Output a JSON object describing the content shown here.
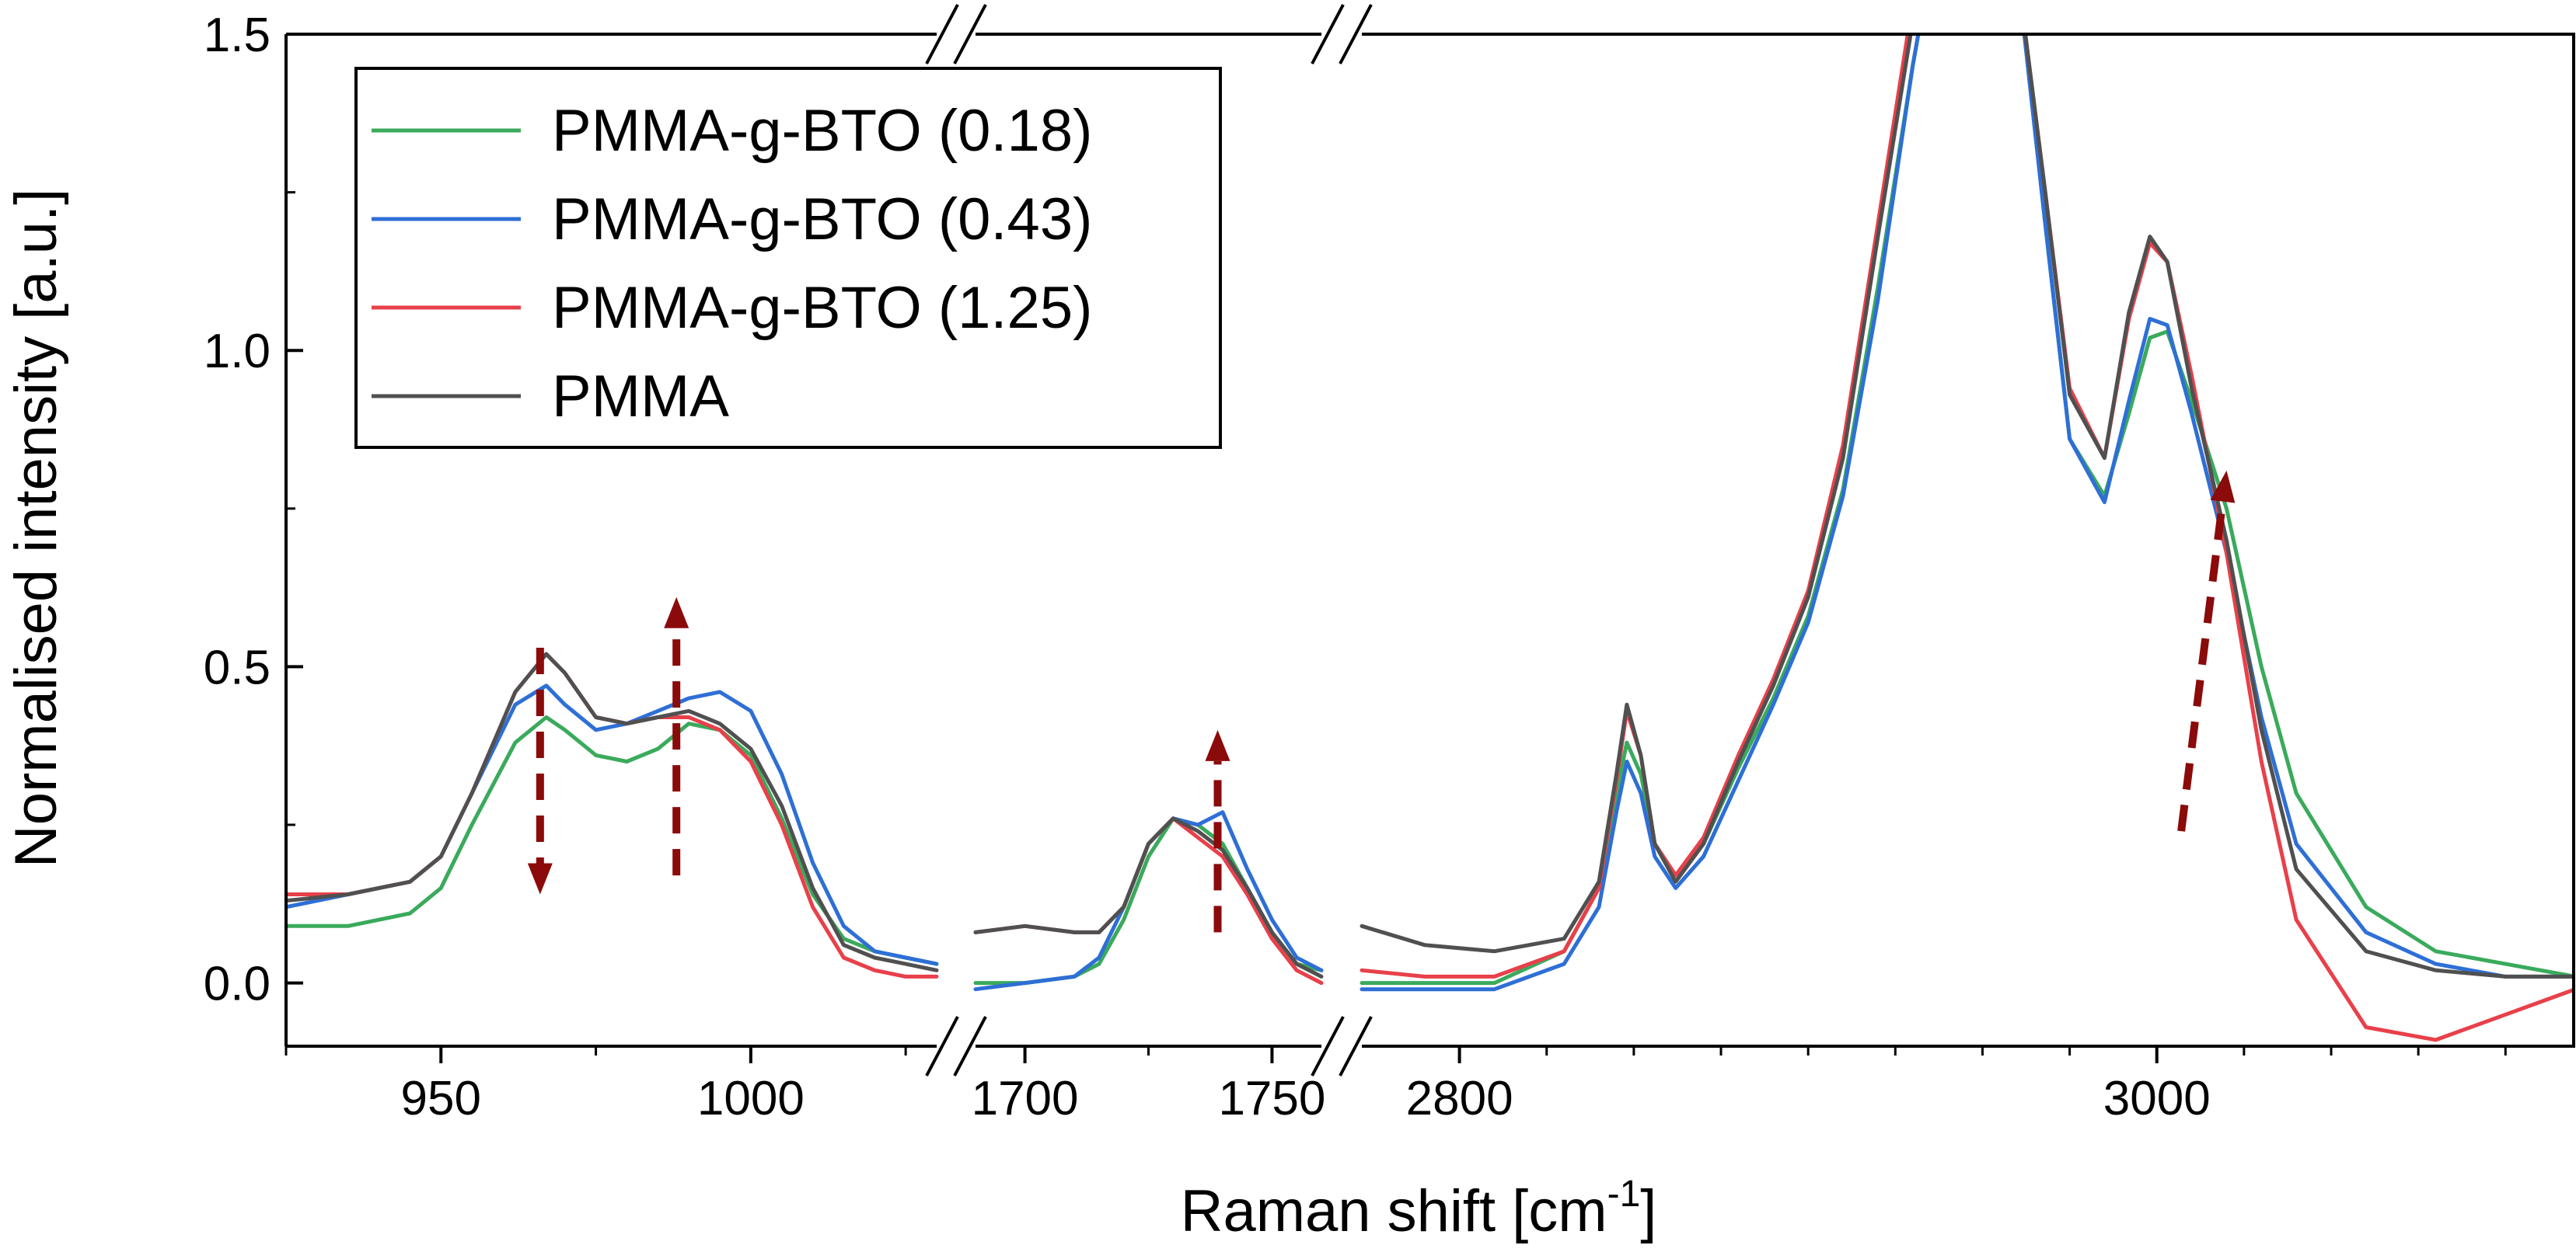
{
  "chart_data": {
    "type": "line",
    "xlabel": "Raman shift [cm",
    "xlabel_superscript": "-1",
    "xlabel_suffix": "]",
    "ylabel": "Normalised intensity [a.u.]",
    "ylim": [
      -0.1,
      1.5
    ],
    "y_ticks": [
      0.0,
      0.5,
      1.0,
      1.5
    ],
    "y_tick_labels": [
      "0.0",
      "0.5",
      "1.0",
      "1.5"
    ],
    "legend_position": "top-left",
    "axis_breaks": [
      "1030-1690",
      "1760-2772"
    ],
    "panels": [
      {
        "x_range": [
          925,
          1030
        ],
        "ticks": [
          950,
          1000
        ],
        "tick_labels": [
          "950",
          "1000"
        ],
        "minor_ticks": [
          925,
          975,
          1025
        ]
      },
      {
        "x_range": [
          1690,
          1760
        ],
        "ticks": [
          1700,
          1750
        ],
        "tick_labels": [
          "1700",
          "1750"
        ],
        "minor_ticks": [
          1725
        ]
      },
      {
        "x_range": [
          2772,
          3120
        ],
        "ticks": [
          2800,
          3000
        ],
        "tick_labels": [
          "2800",
          "3000"
        ],
        "minor_ticks": [
          2825,
          2850,
          2875,
          2900,
          2925,
          2950,
          2975,
          3025,
          3050,
          3075,
          3100
        ]
      }
    ],
    "series": [
      {
        "name": "PMMA-g-BTO (0.18)",
        "color": "#3aaa5c",
        "panels": [
          {
            "x": [
              925,
              935,
              945,
              950,
              955,
              962,
              967,
              970,
              975,
              980,
              985,
              990,
              995,
              1000,
              1005,
              1010,
              1015,
              1020,
              1025,
              1030
            ],
            "y": [
              0.09,
              0.09,
              0.11,
              0.15,
              0.25,
              0.38,
              0.42,
              0.4,
              0.36,
              0.35,
              0.37,
              0.41,
              0.4,
              0.36,
              0.26,
              0.14,
              0.07,
              0.05,
              0.04,
              0.03
            ]
          },
          {
            "x": [
              1690,
              1700,
              1710,
              1715,
              1720,
              1725,
              1730,
              1735,
              1740,
              1745,
              1750,
              1755,
              1760
            ],
            "y": [
              0.0,
              0.0,
              0.01,
              0.03,
              0.1,
              0.2,
              0.26,
              0.25,
              0.22,
              0.15,
              0.08,
              0.03,
              0.02
            ]
          },
          {
            "x": [
              2772,
              2790,
              2810,
              2830,
              2840,
              2845,
              2848,
              2852,
              2856,
              2862,
              2870,
              2880,
              2890,
              2900,
              2910,
              2920,
              2930,
              2938,
              2945,
              2960,
              2968,
              2975,
              2985,
              2992,
              2998,
              3003,
              3010,
              3020,
              3030,
              3040,
              3060,
              3080,
              3100,
              3120
            ],
            "y": [
              0.0,
              0.0,
              0.0,
              0.05,
              0.15,
              0.3,
              0.38,
              0.33,
              0.22,
              0.17,
              0.22,
              0.34,
              0.45,
              0.58,
              0.78,
              1.1,
              1.45,
              1.7,
              1.7,
              1.6,
              1.2,
              0.86,
              0.77,
              0.9,
              1.02,
              1.03,
              0.92,
              0.75,
              0.5,
              0.3,
              0.12,
              0.05,
              0.03,
              0.01
            ]
          }
        ]
      },
      {
        "name": "PMMA-g-BTO (0.43)",
        "color": "#2e6fd6",
        "panels": [
          {
            "x": [
              925,
              935,
              945,
              950,
              955,
              962,
              967,
              970,
              975,
              980,
              985,
              990,
              995,
              1000,
              1005,
              1010,
              1015,
              1020,
              1025,
              1030
            ],
            "y": [
              0.12,
              0.14,
              0.16,
              0.2,
              0.3,
              0.44,
              0.47,
              0.44,
              0.4,
              0.41,
              0.43,
              0.45,
              0.46,
              0.43,
              0.33,
              0.19,
              0.09,
              0.05,
              0.04,
              0.03
            ]
          },
          {
            "x": [
              1690,
              1700,
              1710,
              1715,
              1720,
              1725,
              1730,
              1735,
              1740,
              1745,
              1750,
              1755,
              1760
            ],
            "y": [
              -0.01,
              0.0,
              0.01,
              0.04,
              0.12,
              0.22,
              0.26,
              0.25,
              0.27,
              0.18,
              0.1,
              0.04,
              0.02
            ]
          },
          {
            "x": [
              2772,
              2790,
              2810,
              2830,
              2840,
              2845,
              2848,
              2852,
              2856,
              2862,
              2870,
              2880,
              2890,
              2900,
              2910,
              2920,
              2930,
              2938,
              2945,
              2960,
              2968,
              2975,
              2985,
              2992,
              2998,
              3003,
              3010,
              3020,
              3030,
              3040,
              3060,
              3080,
              3100,
              3120
            ],
            "y": [
              -0.01,
              -0.01,
              -0.01,
              0.03,
              0.12,
              0.27,
              0.35,
              0.3,
              0.2,
              0.15,
              0.2,
              0.32,
              0.44,
              0.57,
              0.77,
              1.08,
              1.45,
              1.7,
              1.7,
              1.6,
              1.2,
              0.86,
              0.76,
              0.92,
              1.05,
              1.04,
              0.9,
              0.68,
              0.42,
              0.22,
              0.08,
              0.03,
              0.01,
              0.01
            ]
          }
        ]
      },
      {
        "name": "PMMA-g-BTO (1.25)",
        "color": "#e8404a",
        "panels": [
          {
            "x": [
              925,
              935,
              945,
              950,
              955,
              962,
              967,
              970,
              975,
              980,
              985,
              990,
              995,
              1000,
              1005,
              1010,
              1015,
              1020,
              1025,
              1030
            ],
            "y": [
              0.14,
              0.14,
              0.16,
              0.2,
              0.3,
              0.46,
              0.52,
              0.49,
              0.42,
              0.41,
              0.42,
              0.42,
              0.4,
              0.35,
              0.25,
              0.12,
              0.04,
              0.02,
              0.01,
              0.01
            ]
          },
          {
            "x": [
              1690,
              1700,
              1710,
              1715,
              1720,
              1725,
              1730,
              1735,
              1740,
              1745,
              1750,
              1755,
              1760
            ],
            "y": [
              0.08,
              0.09,
              0.08,
              0.08,
              0.12,
              0.22,
              0.26,
              0.23,
              0.2,
              0.14,
              0.07,
              0.02,
              0.0
            ]
          },
          {
            "x": [
              2772,
              2790,
              2810,
              2830,
              2840,
              2845,
              2848,
              2852,
              2856,
              2862,
              2870,
              2880,
              2890,
              2900,
              2910,
              2920,
              2930,
              2938,
              2945,
              2960,
              2968,
              2975,
              2985,
              2992,
              2998,
              3003,
              3010,
              3020,
              3030,
              3040,
              3060,
              3080,
              3100,
              3120
            ],
            "y": [
              0.02,
              0.01,
              0.01,
              0.05,
              0.15,
              0.32,
              0.43,
              0.36,
              0.22,
              0.17,
              0.23,
              0.36,
              0.48,
              0.62,
              0.85,
              1.2,
              1.55,
              1.7,
              1.7,
              1.6,
              1.25,
              0.94,
              0.83,
              1.05,
              1.17,
              1.14,
              0.96,
              0.68,
              0.35,
              0.1,
              -0.07,
              -0.09,
              -0.05,
              -0.01
            ]
          }
        ]
      },
      {
        "name": "PMMA",
        "color": "#505050",
        "panels": [
          {
            "x": [
              925,
              935,
              945,
              950,
              955,
              962,
              967,
              970,
              975,
              980,
              985,
              990,
              995,
              1000,
              1005,
              1010,
              1015,
              1020,
              1025,
              1030
            ],
            "y": [
              0.13,
              0.14,
              0.16,
              0.2,
              0.3,
              0.46,
              0.52,
              0.49,
              0.42,
              0.41,
              0.42,
              0.43,
              0.41,
              0.37,
              0.28,
              0.15,
              0.06,
              0.04,
              0.03,
              0.02
            ]
          },
          {
            "x": [
              1690,
              1700,
              1710,
              1715,
              1720,
              1725,
              1730,
              1735,
              1740,
              1745,
              1750,
              1755,
              1760
            ],
            "y": [
              0.08,
              0.09,
              0.08,
              0.08,
              0.12,
              0.22,
              0.26,
              0.24,
              0.21,
              0.15,
              0.08,
              0.03,
              0.01
            ]
          },
          {
            "x": [
              2772,
              2790,
              2810,
              2830,
              2840,
              2845,
              2848,
              2852,
              2856,
              2862,
              2870,
              2880,
              2890,
              2900,
              2910,
              2920,
              2930,
              2938,
              2945,
              2960,
              2968,
              2975,
              2985,
              2992,
              2998,
              3003,
              3010,
              3020,
              3030,
              3040,
              3060,
              3080,
              3100,
              3120
            ],
            "y": [
              0.09,
              0.06,
              0.05,
              0.07,
              0.16,
              0.33,
              0.44,
              0.36,
              0.22,
              0.16,
              0.22,
              0.35,
              0.47,
              0.61,
              0.83,
              1.18,
              1.52,
              1.7,
              1.7,
              1.6,
              1.25,
              0.93,
              0.83,
              1.06,
              1.18,
              1.14,
              0.94,
              0.7,
              0.4,
              0.18,
              0.05,
              0.02,
              0.01,
              0.01
            ]
          }
        ]
      }
    ],
    "annotations": [
      {
        "type": "dashed-arrow",
        "direction": "down",
        "x": 966,
        "y_from": 0.53,
        "y_to": 0.14,
        "panel": 0,
        "color": "#8b0a0a"
      },
      {
        "type": "dashed-arrow",
        "direction": "up",
        "x": 988,
        "y_from": 0.17,
        "y_to": 0.61,
        "panel": 0,
        "color": "#8b0a0a"
      },
      {
        "type": "dashed-arrow",
        "direction": "up",
        "x": 1739,
        "y_from": 0.08,
        "y_to": 0.4,
        "panel": 1,
        "color": "#8b0a0a"
      },
      {
        "type": "dashed-arrow",
        "direction": "up-right",
        "x_from": 3007,
        "y_from": 0.24,
        "x_to": 3020,
        "y_to": 0.81,
        "panel": 2,
        "color": "#8b0a0a"
      }
    ]
  }
}
